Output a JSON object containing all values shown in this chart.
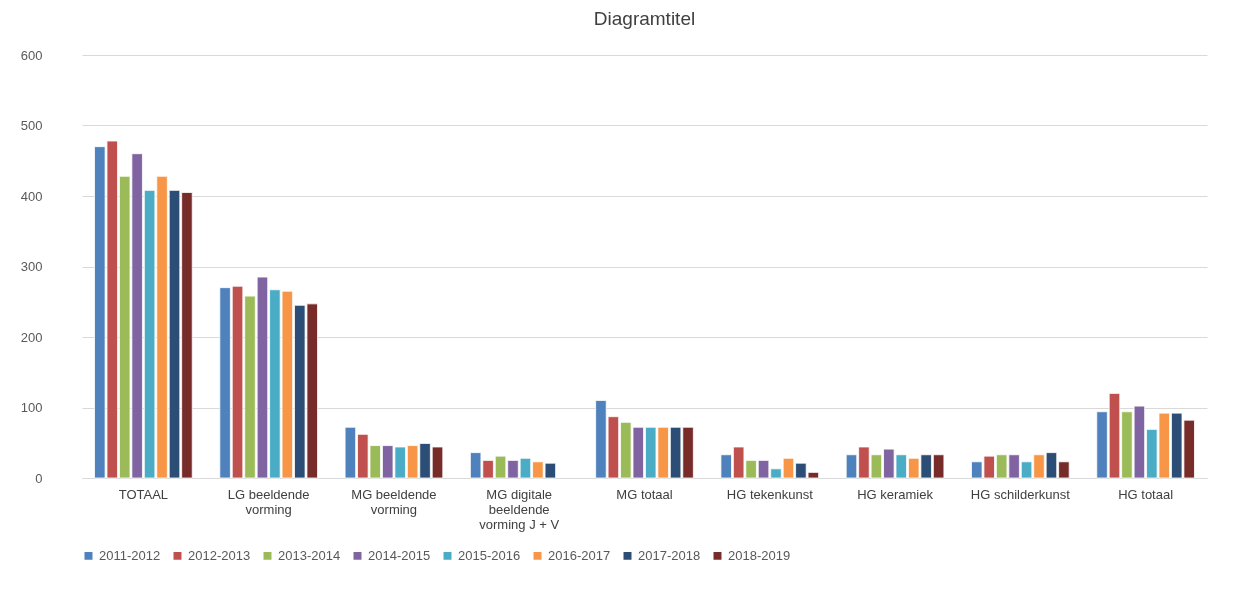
{
  "chart_data": {
    "type": "bar",
    "title": "Diagramtitel",
    "categories": [
      "TOTAAL",
      "LG beeldende vorming",
      "MG beeldende vorming",
      "MG digitale beeldende vorming J + V",
      "MG totaal",
      "HG tekenkunst",
      "HG keramiek",
      "HG schilderkunst",
      "HG totaal"
    ],
    "series": [
      {
        "name": "2011-2012",
        "color": "#4f81bd",
        "values": [
          470,
          270,
          72,
          36,
          110,
          33,
          33,
          23,
          94
        ]
      },
      {
        "name": "2012-2013",
        "color": "#c0504d",
        "values": [
          478,
          272,
          62,
          25,
          87,
          44,
          44,
          31,
          120
        ]
      },
      {
        "name": "2013-2014",
        "color": "#9bbb59",
        "values": [
          428,
          258,
          46,
          31,
          79,
          25,
          33,
          33,
          94
        ]
      },
      {
        "name": "2014-2015",
        "color": "#8064a2",
        "values": [
          460,
          285,
          46,
          25,
          72,
          25,
          41,
          33,
          102
        ]
      },
      {
        "name": "2015-2016",
        "color": "#4bacc6",
        "values": [
          408,
          267,
          44,
          28,
          72,
          13,
          33,
          23,
          69
        ]
      },
      {
        "name": "2016-2017",
        "color": "#f79646",
        "values": [
          428,
          265,
          46,
          23,
          72,
          28,
          28,
          33,
          92
        ]
      },
      {
        "name": "2017-2018",
        "color": "#2c4d75",
        "values": [
          408,
          245,
          49,
          21,
          72,
          21,
          33,
          36,
          92
        ]
      },
      {
        "name": "2018-2019",
        "color": "#772c2a",
        "values": [
          405,
          247,
          44,
          null,
          72,
          8,
          33,
          23,
          82
        ]
      }
    ],
    "ylim": [
      0,
      600
    ],
    "yticks": [
      0,
      100,
      200,
      300,
      400,
      500,
      600
    ],
    "grid": "y",
    "legend": "bottom"
  }
}
